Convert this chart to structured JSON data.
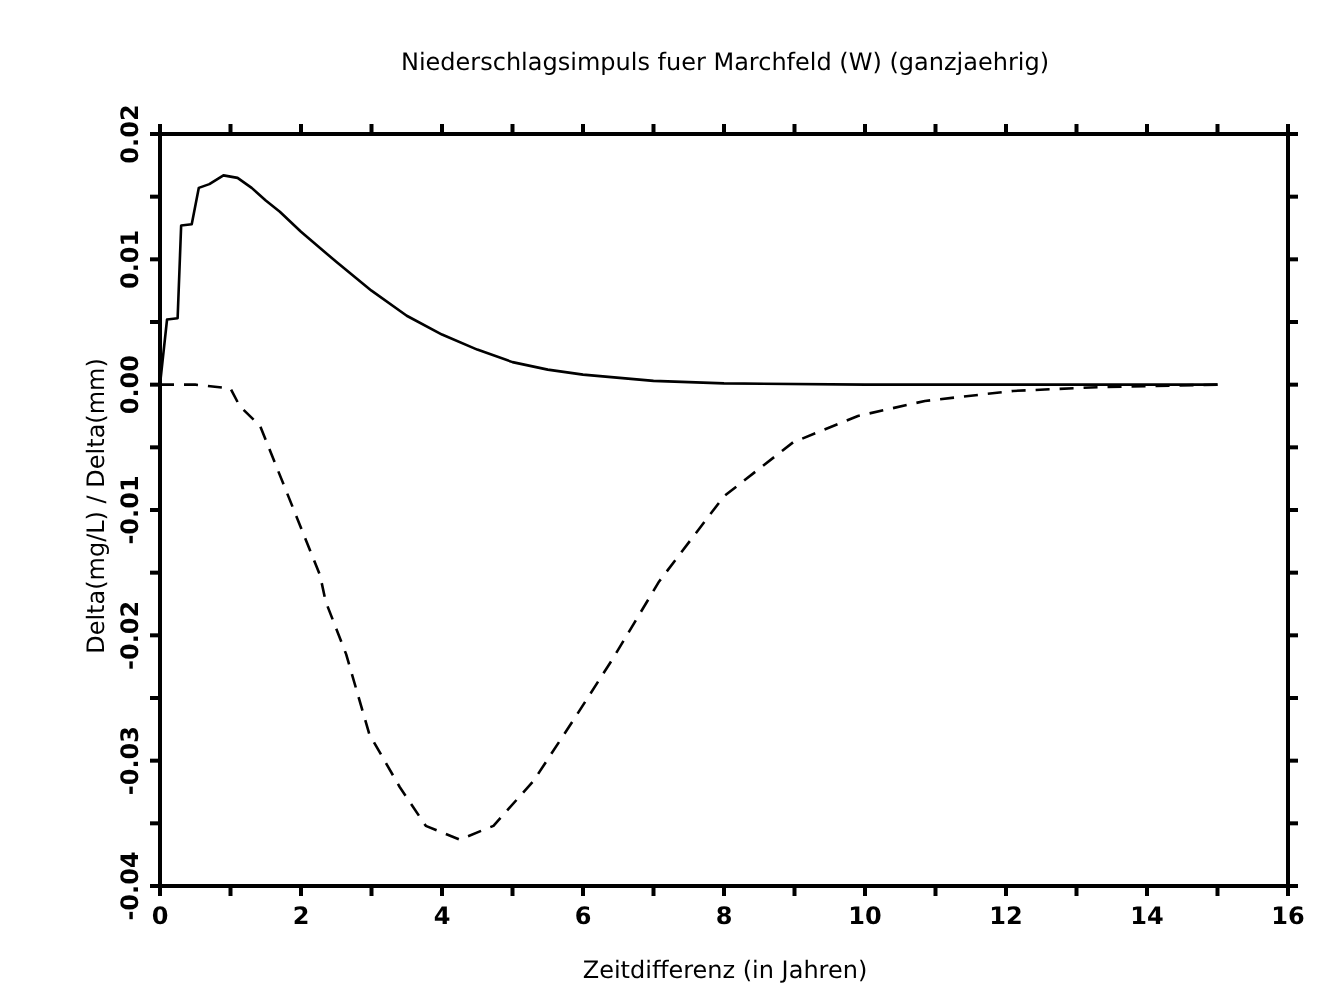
{
  "chart_data": {
    "type": "line",
    "title": "Niederschlagsimpuls fuer Marchfeld (W) (ganzjaehrig)",
    "xlabel": "Zeitdifferenz (in Jahren)",
    "ylabel": "Delta(mg/L) / Delta(mm)",
    "xlim": [
      0,
      16
    ],
    "ylim": [
      -0.04,
      0.02
    ],
    "xticks": [
      0,
      {
        "value": 1,
        "label": null
      },
      2,
      {
        "value": 3,
        "label": null
      },
      4,
      {
        "value": 5,
        "label": null
      },
      6,
      {
        "value": 7,
        "label": null
      },
      8,
      {
        "value": 9,
        "label": null
      },
      10,
      {
        "value": 11,
        "label": null
      },
      12,
      {
        "value": 13,
        "label": null
      },
      14,
      {
        "value": 15,
        "label": null
      },
      16
    ],
    "yticks": [
      {
        "value": -0.04,
        "label": "-0.04"
      },
      {
        "value": -0.035,
        "label": null
      },
      {
        "value": -0.03,
        "label": "-0.03"
      },
      {
        "value": -0.025,
        "label": null
      },
      {
        "value": -0.02,
        "label": "-0.02"
      },
      {
        "value": -0.015,
        "label": null
      },
      {
        "value": -0.01,
        "label": "-0.01"
      },
      {
        "value": -0.005,
        "label": null
      },
      {
        "value": 0,
        "label": "0.00"
      },
      {
        "value": 0.005,
        "label": null
      },
      {
        "value": 0.01,
        "label": "0.01"
      },
      {
        "value": 0.015,
        "label": null
      },
      {
        "value": 0.02,
        "label": "0.02"
      }
    ],
    "legend": false,
    "series": [
      {
        "color": "#000000",
        "line_style": "solid",
        "x": [
          0,
          0.1,
          0.25,
          0.3,
          0.45,
          0.55,
          0.7,
          0.9,
          1.1,
          1.3,
          1.5,
          1.7,
          2,
          2.5,
          3,
          3.5,
          4,
          4.5,
          5,
          5.5,
          6,
          7,
          8,
          10,
          15
        ],
        "values": [
          0,
          0.0052,
          0.0053,
          0.0127,
          0.0128,
          0.0157,
          0.016,
          0.0167,
          0.0165,
          0.0157,
          0.0147,
          0.0138,
          0.0122,
          0.0098,
          0.0075,
          0.0055,
          0.004,
          0.0028,
          0.0018,
          0.0012,
          0.0008,
          0.0003,
          0.0001,
          0,
          0
        ]
      },
      {
        "color": "#000000",
        "line_style": "dashed",
        "x": [
          0,
          0.5,
          1,
          1.13,
          1.42,
          2.27,
          2.35,
          2.64,
          2.97,
          3.4,
          3.77,
          4.25,
          4.73,
          5.3,
          5.86,
          6.43,
          7.08,
          8,
          8.98,
          9.9,
          10.85,
          12.1,
          13.3,
          15
        ],
        "values": [
          0,
          0,
          -0.0003,
          -0.0017,
          -0.0033,
          -0.0152,
          -0.0173,
          -0.0215,
          -0.0279,
          -0.0321,
          -0.0352,
          -0.0363,
          -0.0352,
          -0.0316,
          -0.0268,
          -0.0218,
          -0.0157,
          -0.0089,
          -0.0046,
          -0.0025,
          -0.0013,
          -0.0005,
          -0.0002,
          0
        ]
      }
    ]
  }
}
